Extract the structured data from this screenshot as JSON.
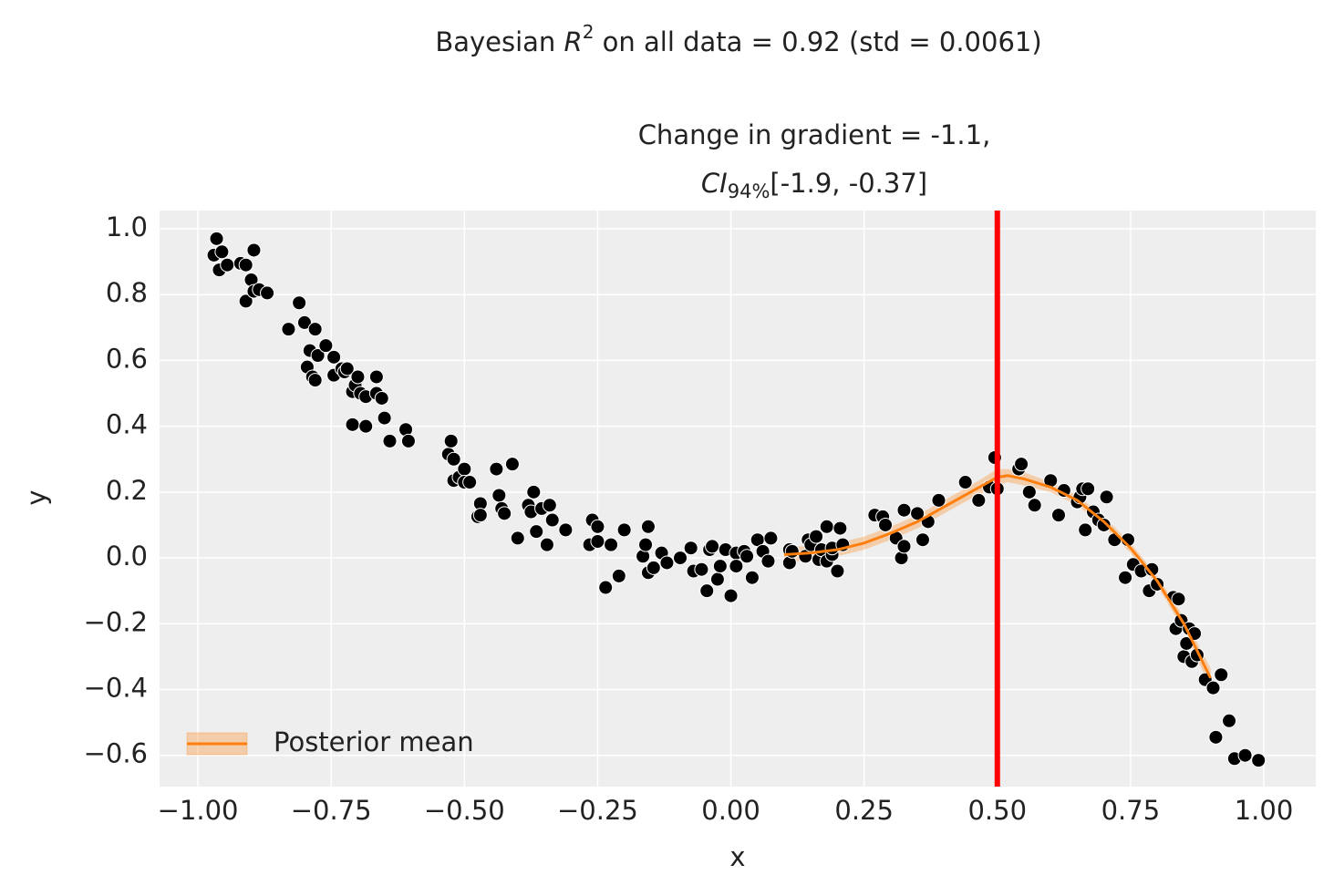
{
  "chart_data": {
    "type": "scatter",
    "title": {
      "prefix": "Bayesian ",
      "r": "R",
      "sup": "2",
      "suffix": " on all data = 0.92 (std = 0.0061)"
    },
    "subtitle": {
      "line1": "Change in gradient = -1.1,",
      "ci": "CI",
      "sub": "94%",
      "interval": "[-1.9, -0.37]"
    },
    "xlabel": "x",
    "ylabel": "y",
    "xlim": [
      -1.072,
      1.0975
    ],
    "ylim": [
      -0.695,
      1.0554
    ],
    "xticks": [
      {
        "value": -1,
        "label": "−1.00"
      },
      {
        "value": -0.75,
        "label": "−0.75"
      },
      {
        "value": -0.5,
        "label": "−0.50"
      },
      {
        "value": -0.25,
        "label": "−0.25"
      },
      {
        "value": 0,
        "label": "0.00"
      },
      0.25,
      {
        "value": 0.5,
        "label": "0.50"
      },
      0.75,
      {
        "value": 1,
        "label": "1.00"
      }
    ],
    "yticks": [
      {
        "value": -0.6,
        "label": "−0.6"
      },
      {
        "value": -0.4,
        "label": "−0.4"
      },
      {
        "value": -0.2,
        "label": "−0.2"
      },
      {
        "value": 0,
        "label": "0.0"
      },
      0.2,
      0.4,
      0.6,
      0.8,
      {
        "value": 1,
        "label": "1.0"
      }
    ],
    "grid": true,
    "points": {
      "color": "#000000",
      "x": [
        -0.97,
        -0.965,
        -0.955,
        -0.96,
        -0.945,
        -0.92,
        -0.91,
        -0.91,
        -0.895,
        -0.9,
        -0.895,
        -0.885,
        -0.87,
        -0.83,
        -0.81,
        -0.8,
        -0.79,
        -0.795,
        -0.785,
        -0.78,
        -0.78,
        -0.775,
        -0.76,
        -0.745,
        -0.745,
        -0.73,
        -0.725,
        -0.72,
        -0.71,
        -0.71,
        -0.705,
        -0.7,
        -0.695,
        -0.685,
        -0.685,
        -0.665,
        -0.665,
        -0.655,
        -0.65,
        -0.64,
        -0.61,
        -0.605,
        -0.53,
        -0.525,
        -0.52,
        -0.52,
        -0.51,
        -0.5,
        -0.5,
        -0.49,
        -0.475,
        -0.47,
        -0.47,
        -0.44,
        -0.435,
        -0.43,
        -0.425,
        -0.41,
        -0.4,
        -0.38,
        -0.375,
        -0.37,
        -0.365,
        -0.355,
        -0.345,
        -0.34,
        -0.335,
        -0.31,
        -0.265,
        -0.26,
        -0.25,
        -0.25,
        -0.235,
        -0.225,
        -0.21,
        -0.2,
        -0.165,
        -0.16,
        -0.155,
        -0.155,
        -0.145,
        -0.13,
        -0.12,
        -0.095,
        -0.075,
        -0.07,
        -0.055,
        -0.045,
        -0.04,
        -0.035,
        -0.025,
        -0.02,
        -0.01,
        0.0,
        0.01,
        0.01,
        0.025,
        0.03,
        0.04,
        0.05,
        0.06,
        0.07,
        0.075,
        0.11,
        0.11,
        0.115,
        0.14,
        0.145,
        0.15,
        0.16,
        0.165,
        0.17,
        0.18,
        0.18,
        0.19,
        0.19,
        0.2,
        0.205,
        0.21,
        0.27,
        0.285,
        0.29,
        0.31,
        0.32,
        0.325,
        0.325,
        0.35,
        0.36,
        0.37,
        0.39,
        0.44,
        0.465,
        0.485,
        0.495,
        0.5,
        0.54,
        0.545,
        0.56,
        0.57,
        0.6,
        0.615,
        0.625,
        0.65,
        0.655,
        0.66,
        0.665,
        0.67,
        0.68,
        0.69,
        0.7,
        0.705,
        0.72,
        0.74,
        0.745,
        0.755,
        0.77,
        0.785,
        0.79,
        0.8,
        0.83,
        0.835,
        0.84,
        0.845,
        0.85,
        0.855,
        0.86,
        0.865,
        0.87,
        0.875,
        0.89,
        0.905,
        0.91,
        0.92,
        0.935,
        0.945,
        0.965,
        0.99
      ],
      "y": [
        0.92,
        0.97,
        0.93,
        0.875,
        0.89,
        0.895,
        0.89,
        0.78,
        0.935,
        0.845,
        0.81,
        0.815,
        0.805,
        0.695,
        0.775,
        0.715,
        0.63,
        0.58,
        0.55,
        0.54,
        0.695,
        0.615,
        0.645,
        0.61,
        0.555,
        0.575,
        0.565,
        0.575,
        0.505,
        0.405,
        0.525,
        0.55,
        0.5,
        0.49,
        0.4,
        0.55,
        0.5,
        0.485,
        0.425,
        0.355,
        0.39,
        0.355,
        0.315,
        0.355,
        0.3,
        0.235,
        0.245,
        0.27,
        0.23,
        0.23,
        0.125,
        0.165,
        0.13,
        0.27,
        0.19,
        0.15,
        0.135,
        0.285,
        0.06,
        0.16,
        0.14,
        0.2,
        0.08,
        0.15,
        0.04,
        0.16,
        0.115,
        0.085,
        0.04,
        0.115,
        0.095,
        0.05,
        -0.09,
        0.04,
        -0.055,
        0.085,
        0.005,
        0.04,
        -0.045,
        0.095,
        -0.03,
        0.015,
        -0.015,
        0.0,
        0.03,
        -0.04,
        -0.035,
        -0.1,
        0.025,
        0.035,
        -0.065,
        -0.025,
        0.025,
        -0.115,
        0.015,
        -0.025,
        0.02,
        0.005,
        -0.06,
        0.055,
        0.02,
        -0.01,
        0.06,
        -0.015,
        0.025,
        0.02,
        0.005,
        0.055,
        0.04,
        0.065,
        -0.005,
        0.025,
        -0.01,
        0.095,
        0.01,
        0.03,
        -0.04,
        0.09,
        0.04,
        0.13,
        0.125,
        0.1,
        0.06,
        0.0,
        0.035,
        0.145,
        0.135,
        0.055,
        0.11,
        0.175,
        0.23,
        0.175,
        0.215,
        0.305,
        0.21,
        0.27,
        0.285,
        0.2,
        0.16,
        0.235,
        0.13,
        0.205,
        0.17,
        0.185,
        0.21,
        0.085,
        0.21,
        0.14,
        0.115,
        0.1,
        0.185,
        0.055,
        -0.06,
        0.055,
        -0.02,
        -0.04,
        -0.1,
        -0.035,
        -0.08,
        -0.12,
        -0.215,
        -0.125,
        -0.19,
        -0.3,
        -0.26,
        -0.215,
        -0.315,
        -0.23,
        -0.295,
        -0.37,
        -0.395,
        -0.545,
        -0.355,
        -0.495,
        -0.61,
        -0.6,
        -0.615
      ]
    },
    "line": {
      "name": "Posterior mean",
      "color": "#ff7f0e",
      "x": [
        0.1,
        0.15,
        0.2,
        0.25,
        0.3,
        0.35,
        0.4,
        0.45,
        0.5,
        0.52,
        0.55,
        0.6,
        0.65,
        0.7,
        0.75,
        0.8,
        0.85,
        0.9
      ],
      "values": [
        0.01,
        0.015,
        0.025,
        0.045,
        0.075,
        0.11,
        0.155,
        0.2,
        0.245,
        0.25,
        0.24,
        0.215,
        0.175,
        0.11,
        0.03,
        -0.07,
        -0.2,
        -0.365
      ],
      "lower": [
        -0.015,
        -0.005,
        0.005,
        0.025,
        0.055,
        0.09,
        0.135,
        0.18,
        0.22,
        0.23,
        0.22,
        0.2,
        0.16,
        0.095,
        0.015,
        -0.085,
        -0.22,
        -0.395
      ],
      "upper": [
        0.035,
        0.035,
        0.045,
        0.065,
        0.095,
        0.13,
        0.175,
        0.22,
        0.27,
        0.27,
        0.26,
        0.23,
        0.19,
        0.125,
        0.045,
        -0.055,
        -0.18,
        -0.335
      ]
    },
    "vline": {
      "x": 0.5,
      "color": "#ff0000"
    },
    "legend": "lower left"
  }
}
